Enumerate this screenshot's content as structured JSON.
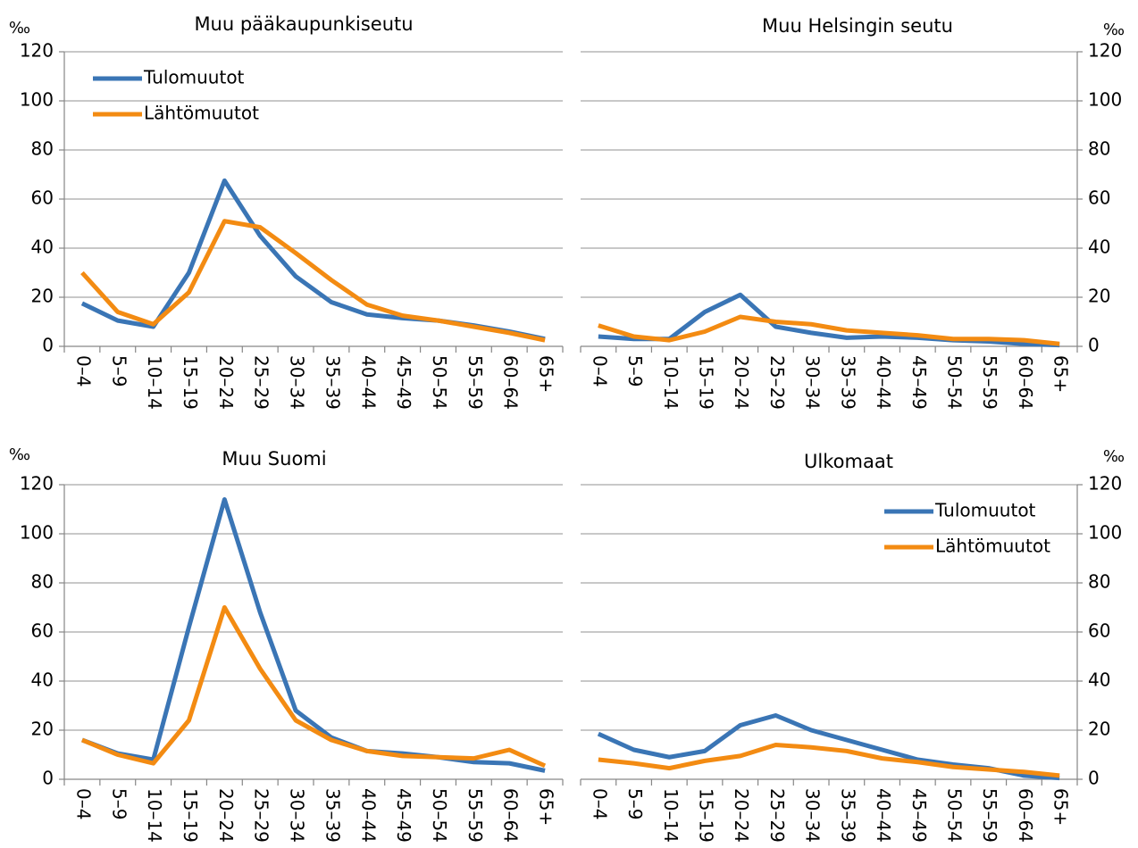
{
  "chart_data": [
    {
      "type": "line",
      "title": "Muu pääkaupunkiseutu",
      "y_label": "‰",
      "yaxis_side": "left",
      "legend": "upper left",
      "grid": true,
      "categories": [
        "0–4",
        "5–9",
        "10–14",
        "15–19",
        "20–24",
        "25–29",
        "30–34",
        "35–39",
        "40–44",
        "45–49",
        "50–54",
        "55–59",
        "60–64",
        "65+"
      ],
      "ylim": [
        0,
        120
      ],
      "yticks": [
        0,
        20,
        40,
        60,
        80,
        100,
        120
      ],
      "series": [
        {
          "name": "Tulomuutot",
          "color": "#3a75b5",
          "values": [
            17.5,
            10.5,
            8,
            30,
            67.5,
            45,
            28.5,
            18,
            13,
            11.5,
            10.5,
            8.5,
            6,
            3
          ]
        },
        {
          "name": "Lähtömuutot",
          "color": "#f38b12",
          "values": [
            30,
            14,
            9,
            22,
            51,
            48.5,
            38,
            27,
            17,
            12.5,
            10.5,
            8,
            5.5,
            2.5
          ]
        }
      ]
    },
    {
      "type": "line",
      "title": "Muu Helsingin seutu",
      "y_label": "‰",
      "yaxis_side": "right",
      "grid": true,
      "categories": [
        "0–4",
        "5–9",
        "10–14",
        "15–19",
        "20–24",
        "25–29",
        "30–34",
        "35–39",
        "40–44",
        "45–49",
        "50–54",
        "55–59",
        "60–64",
        "65+"
      ],
      "ylim": [
        0,
        120
      ],
      "yticks": [
        0,
        20,
        40,
        60,
        80,
        100,
        120
      ],
      "series": [
        {
          "color": "#3a75b5",
          "values": [
            4,
            3,
            3,
            14,
            21,
            8,
            5.5,
            3.5,
            4,
            3.5,
            2.5,
            2,
            1,
            0.5
          ]
        },
        {
          "color": "#f38b12",
          "values": [
            8.5,
            4,
            2.5,
            6,
            12,
            10,
            9,
            6.5,
            5.5,
            4.5,
            3,
            3,
            2.5,
            1
          ]
        }
      ]
    },
    {
      "type": "line",
      "title": "Muu Suomi",
      "y_label": "‰",
      "yaxis_side": "left",
      "grid": true,
      "categories": [
        "0–4",
        "5–9",
        "10–14",
        "15–19",
        "20–24",
        "25–29",
        "30–34",
        "35–39",
        "40–44",
        "45–49",
        "50–54",
        "55–59",
        "60–64",
        "65+"
      ],
      "ylim": [
        0,
        120
      ],
      "yticks": [
        0,
        20,
        40,
        60,
        80,
        100,
        120
      ],
      "series": [
        {
          "color": "#3a75b5",
          "values": [
            16,
            10.5,
            8,
            62,
            114,
            68,
            28,
            17,
            11.5,
            10.5,
            9,
            7,
            6.5,
            3.5
          ]
        },
        {
          "color": "#f38b12",
          "values": [
            16,
            10,
            6.5,
            24,
            70,
            45,
            24,
            16,
            11.5,
            9.5,
            9,
            8.5,
            12,
            5.5
          ]
        }
      ]
    },
    {
      "type": "line",
      "title": "Ulkomaat",
      "y_label": "‰",
      "yaxis_side": "right",
      "legend": "upper right",
      "grid": true,
      "categories": [
        "0–4",
        "5–9",
        "10–14",
        "15–19",
        "20–24",
        "25–29",
        "30–34",
        "35–39",
        "40–44",
        "45–49",
        "50–54",
        "55–59",
        "60–64",
        "65+"
      ],
      "ylim": [
        0,
        120
      ],
      "yticks": [
        0,
        20,
        40,
        60,
        80,
        100,
        120
      ],
      "series": [
        {
          "name": "Tulomuutot",
          "color": "#3a75b5",
          "values": [
            18.5,
            12,
            9,
            11.5,
            22,
            26,
            20,
            16,
            12,
            8,
            6,
            4.5,
            1.5,
            0.5
          ]
        },
        {
          "name": "Lähtömuutot",
          "color": "#f38b12",
          "values": [
            8,
            6.5,
            4.5,
            7.5,
            9.5,
            14,
            13,
            11.5,
            8.5,
            7,
            5,
            4,
            3,
            1.5
          ]
        }
      ]
    }
  ]
}
